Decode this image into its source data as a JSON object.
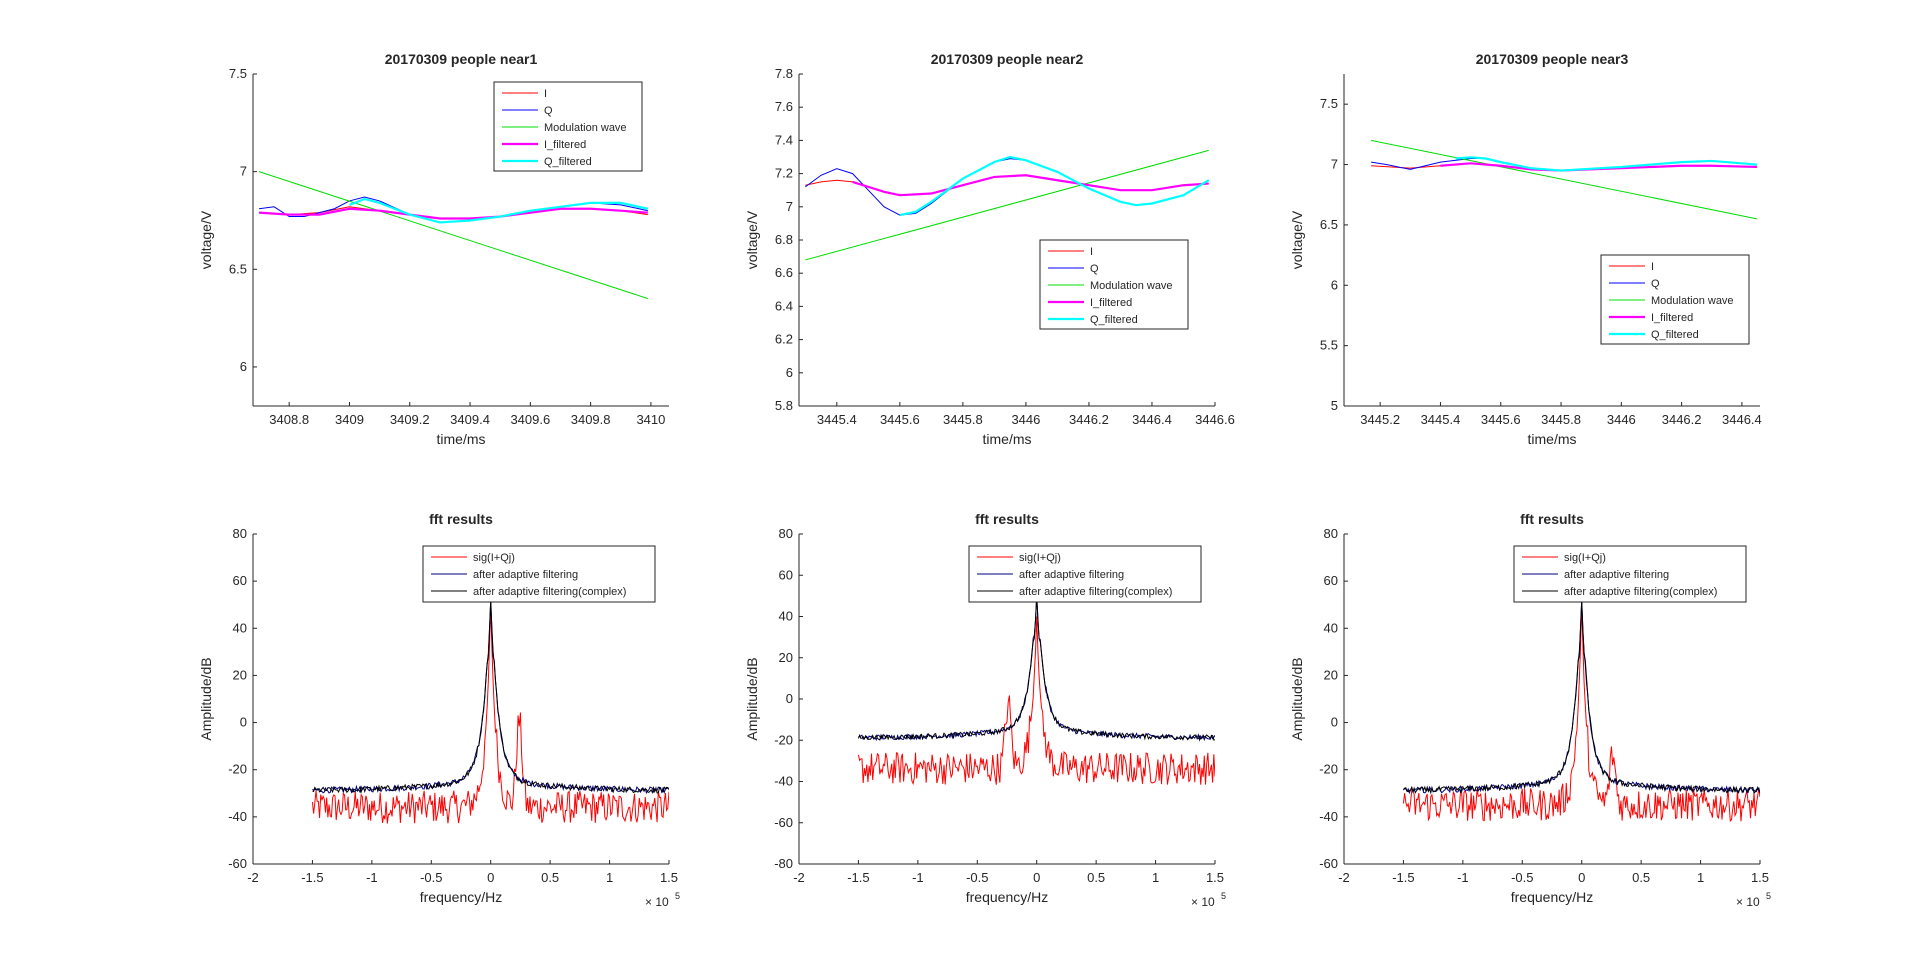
{
  "figure": {
    "background": "#ffffff"
  },
  "colors": {
    "I": "#ff0000",
    "Q": "#0000ff",
    "modulation": "#00dd00",
    "I_filtered": "#ff00ff",
    "Q_filtered": "#00ffff",
    "sig": "#ff0000",
    "adaptive": "#000080",
    "adaptive_complex": "#000000",
    "axis": "#262626"
  },
  "chart_data": [
    {
      "type": "line",
      "title": "20170309 people near1",
      "xlabel": "time/ms",
      "ylabel": "voltage/V",
      "xlim": [
        3408.68,
        3410.06
      ],
      "ylim": [
        5.8,
        7.5
      ],
      "xticks": [
        3408.8,
        3409,
        3409.2,
        3409.4,
        3409.6,
        3409.8,
        3410
      ],
      "yticks": [
        6,
        6.5,
        7,
        7.5
      ],
      "legend": {
        "location": "top-right",
        "entries": [
          "I",
          "Q",
          "Modulation wave",
          "I_filtered",
          "Q_filtered"
        ]
      },
      "series": [
        {
          "name": "I",
          "x": [
            3408.7,
            3408.8,
            3408.9,
            3409.0,
            3409.05,
            3409.1,
            3409.2,
            3409.3,
            3409.4,
            3409.5,
            3409.6,
            3409.7,
            3409.8,
            3409.9,
            3409.99
          ],
          "y": [
            6.79,
            6.78,
            6.79,
            6.82,
            6.81,
            6.8,
            6.78,
            6.76,
            6.76,
            6.77,
            6.79,
            6.81,
            6.81,
            6.8,
            6.78
          ]
        },
        {
          "name": "Q",
          "x": [
            3408.7,
            3408.75,
            3408.8,
            3408.85,
            3408.9,
            3408.95,
            3409.0,
            3409.05,
            3409.1,
            3409.2,
            3409.3,
            3409.4,
            3409.5,
            3409.6,
            3409.7,
            3409.8,
            3409.9,
            3409.99
          ],
          "y": [
            6.81,
            6.82,
            6.77,
            6.77,
            6.79,
            6.81,
            6.85,
            6.87,
            6.85,
            6.78,
            6.74,
            6.75,
            6.77,
            6.8,
            6.82,
            6.84,
            6.83,
            6.8
          ]
        },
        {
          "name": "Modulation wave",
          "x": [
            3408.7,
            3409.99
          ],
          "y": [
            7.0,
            6.35
          ]
        },
        {
          "name": "I_filtered",
          "x": [
            3408.7,
            3408.8,
            3408.9,
            3409.0,
            3409.1,
            3409.2,
            3409.3,
            3409.4,
            3409.5,
            3409.6,
            3409.7,
            3409.8,
            3409.9,
            3409.99
          ],
          "y": [
            6.79,
            6.78,
            6.78,
            6.81,
            6.8,
            6.78,
            6.76,
            6.76,
            6.77,
            6.79,
            6.81,
            6.81,
            6.8,
            6.79
          ]
        },
        {
          "name": "Q_filtered",
          "x": [
            3409.0,
            3409.05,
            3409.1,
            3409.2,
            3409.3,
            3409.4,
            3409.5,
            3409.6,
            3409.7,
            3409.8,
            3409.9,
            3409.99
          ],
          "y": [
            6.83,
            6.86,
            6.84,
            6.78,
            6.74,
            6.75,
            6.77,
            6.8,
            6.82,
            6.84,
            6.84,
            6.81
          ]
        }
      ]
    },
    {
      "type": "line",
      "title": "20170309 people near2",
      "xlabel": "time/ms",
      "ylabel": "voltage/V",
      "xlim": [
        3445.28,
        3446.6
      ],
      "ylim": [
        5.8,
        7.8
      ],
      "xticks": [
        3445.4,
        3445.6,
        3445.8,
        3446,
        3446.2,
        3446.4,
        3446.6
      ],
      "yticks": [
        5.8,
        6,
        6.2,
        6.4,
        6.6,
        6.8,
        7,
        7.2,
        7.4,
        7.6,
        7.8
      ],
      "legend": {
        "location": "middle-right",
        "entries": [
          "I",
          "Q",
          "Modulation wave",
          "I_filtered",
          "Q_filtered"
        ]
      },
      "series": [
        {
          "name": "I",
          "x": [
            3445.3,
            3445.35,
            3445.4,
            3445.45,
            3445.5,
            3445.55,
            3445.6,
            3445.7,
            3445.8,
            3445.9,
            3446.0,
            3446.1,
            3446.2,
            3446.3,
            3446.4,
            3446.5,
            3446.58
          ],
          "y": [
            7.13,
            7.15,
            7.16,
            7.15,
            7.12,
            7.09,
            7.07,
            7.08,
            7.13,
            7.18,
            7.19,
            7.16,
            7.13,
            7.1,
            7.1,
            7.13,
            7.14
          ]
        },
        {
          "name": "Q",
          "x": [
            3445.3,
            3445.35,
            3445.4,
            3445.45,
            3445.5,
            3445.55,
            3445.6,
            3445.65,
            3445.7,
            3445.8,
            3445.9,
            3445.95,
            3446.0,
            3446.1,
            3446.2,
            3446.3,
            3446.35,
            3446.4,
            3446.5,
            3446.58
          ],
          "y": [
            7.12,
            7.19,
            7.23,
            7.2,
            7.1,
            7.0,
            6.95,
            6.96,
            7.02,
            7.17,
            7.27,
            7.29,
            7.28,
            7.21,
            7.11,
            7.03,
            7.01,
            7.02,
            7.07,
            7.16
          ]
        },
        {
          "name": "Modulation wave",
          "x": [
            3445.3,
            3446.58
          ],
          "y": [
            6.68,
            7.34
          ]
        },
        {
          "name": "I_filtered",
          "x": [
            3445.45,
            3445.5,
            3445.55,
            3445.6,
            3445.7,
            3445.8,
            3445.9,
            3446.0,
            3446.1,
            3446.2,
            3446.3,
            3446.4,
            3446.5,
            3446.58
          ],
          "y": [
            7.15,
            7.12,
            7.09,
            7.07,
            7.08,
            7.13,
            7.18,
            7.19,
            7.16,
            7.13,
            7.1,
            7.1,
            7.13,
            7.14
          ]
        },
        {
          "name": "Q_filtered",
          "x": [
            3445.6,
            3445.65,
            3445.7,
            3445.8,
            3445.9,
            3445.95,
            3446.0,
            3446.1,
            3446.2,
            3446.3,
            3446.35,
            3446.4,
            3446.5,
            3446.58
          ],
          "y": [
            6.95,
            6.97,
            7.03,
            7.17,
            7.27,
            7.3,
            7.28,
            7.21,
            7.11,
            7.03,
            7.01,
            7.02,
            7.07,
            7.16
          ]
        }
      ]
    },
    {
      "type": "line",
      "title": "20170309 people near3",
      "xlabel": "time/ms",
      "ylabel": "voltage/V",
      "xlim": [
        3445.08,
        3446.46
      ],
      "ylim": [
        5.0,
        7.75
      ],
      "xticks": [
        3445.2,
        3445.4,
        3445.6,
        3445.8,
        3446,
        3446.2,
        3446.4
      ],
      "yticks": [
        5,
        5.5,
        6,
        6.5,
        7,
        7.5
      ],
      "legend": {
        "location": "lower-right",
        "entries": [
          "I",
          "Q",
          "Modulation wave",
          "I_filtered",
          "Q_filtered"
        ]
      },
      "series": [
        {
          "name": "I",
          "x": [
            3445.17,
            3445.3,
            3445.4,
            3445.5,
            3445.6,
            3445.7,
            3445.8,
            3446.0,
            3446.2,
            3446.3,
            3446.45
          ],
          "y": [
            6.99,
            6.97,
            6.99,
            7.01,
            6.99,
            6.96,
            6.95,
            6.97,
            6.99,
            6.99,
            6.98
          ]
        },
        {
          "name": "Q",
          "x": [
            3445.17,
            3445.22,
            3445.3,
            3445.4,
            3445.5,
            3445.55,
            3445.6,
            3445.7,
            3445.8,
            3446.0,
            3446.2,
            3446.3,
            3446.45
          ],
          "y": [
            7.02,
            7.0,
            6.96,
            7.02,
            7.05,
            7.05,
            7.02,
            6.97,
            6.95,
            6.98,
            7.02,
            7.03,
            7.0
          ]
        },
        {
          "name": "Modulation wave",
          "x": [
            3445.17,
            3446.45
          ],
          "y": [
            7.2,
            6.55
          ]
        },
        {
          "name": "I_filtered",
          "x": [
            3445.4,
            3445.5,
            3445.6,
            3445.7,
            3445.8,
            3446.0,
            3446.2,
            3446.3,
            3446.45
          ],
          "y": [
            6.99,
            7.01,
            6.99,
            6.96,
            6.95,
            6.97,
            6.99,
            6.99,
            6.98
          ]
        },
        {
          "name": "Q_filtered",
          "x": [
            3445.45,
            3445.5,
            3445.55,
            3445.6,
            3445.7,
            3445.8,
            3446.0,
            3446.2,
            3446.3,
            3446.45
          ],
          "y": [
            7.05,
            7.06,
            7.05,
            7.02,
            6.97,
            6.95,
            6.98,
            7.02,
            7.03,
            7.0
          ]
        }
      ]
    },
    {
      "type": "line",
      "title": "fft results",
      "xlabel": "frequency/Hz",
      "ylabel": "Amplitude/dB",
      "x_exponent": "× 10^5",
      "xlim": [
        -2,
        1.5
      ],
      "ylim": [
        -60,
        80
      ],
      "xticks": [
        -2,
        -1.5,
        -1,
        -0.5,
        0,
        0.5,
        1,
        1.5
      ],
      "yticks": [
        -60,
        -40,
        -20,
        0,
        20,
        40,
        60,
        80
      ],
      "legend": {
        "location": "top-right",
        "entries": [
          "sig(I+Qj)",
          "after adaptive filtering",
          "after adaptive filtering(complex)"
        ]
      },
      "series": [
        {
          "name": "sig(I+Qj)",
          "floor": -38,
          "noise": 7,
          "peak": 50,
          "secondary_peak_x": 0.24,
          "secondary_peak_y": -2
        },
        {
          "name": "after adaptive filtering",
          "floor": -29,
          "peak": 52
        },
        {
          "name": "after adaptive filtering(complex)",
          "floor": -29,
          "peak": 52
        }
      ]
    },
    {
      "type": "line",
      "title": "fft results",
      "xlabel": "frequency/Hz",
      "ylabel": "Amplitude/dB",
      "x_exponent": "× 10^5",
      "xlim": [
        -2,
        1.5
      ],
      "ylim": [
        -80,
        80
      ],
      "xticks": [
        -2,
        -1.5,
        -1,
        -0.5,
        0,
        0.5,
        1,
        1.5
      ],
      "yticks": [
        -80,
        -60,
        -40,
        -20,
        0,
        20,
        40,
        60,
        80
      ],
      "legend": {
        "location": "top-right",
        "entries": [
          "sig(I+Qj)",
          "after adaptive filtering",
          "after adaptive filtering(complex)"
        ]
      },
      "series": [
        {
          "name": "sig(I+Qj)",
          "floor": -36,
          "noise": 8,
          "peak": 40,
          "secondary_peak_x": -0.24,
          "secondary_peak_y": -5
        },
        {
          "name": "after adaptive filtering",
          "floor": -19,
          "peak": 50
        },
        {
          "name": "after adaptive filtering(complex)",
          "floor": -19,
          "peak": 50
        }
      ]
    },
    {
      "type": "line",
      "title": "fft results",
      "xlabel": "frequency/Hz",
      "ylabel": "Amplitude/dB",
      "x_exponent": "× 10^5",
      "xlim": [
        -2,
        1.5
      ],
      "ylim": [
        -60,
        80
      ],
      "xticks": [
        -2,
        -1.5,
        -1,
        -0.5,
        0,
        0.5,
        1,
        1.5
      ],
      "yticks": [
        -60,
        -40,
        -20,
        0,
        20,
        40,
        60,
        80
      ],
      "legend": {
        "location": "top-right",
        "entries": [
          "sig(I+Qj)",
          "after adaptive filtering",
          "after adaptive filtering(complex)"
        ]
      },
      "series": [
        {
          "name": "sig(I+Qj)",
          "floor": -37,
          "noise": 7,
          "peak": 50,
          "secondary_peak_x": 0.26,
          "secondary_peak_y": -16
        },
        {
          "name": "after adaptive filtering",
          "floor": -29,
          "peak": 52
        },
        {
          "name": "after adaptive filtering(complex)",
          "floor": -29,
          "peak": 52
        }
      ]
    }
  ]
}
